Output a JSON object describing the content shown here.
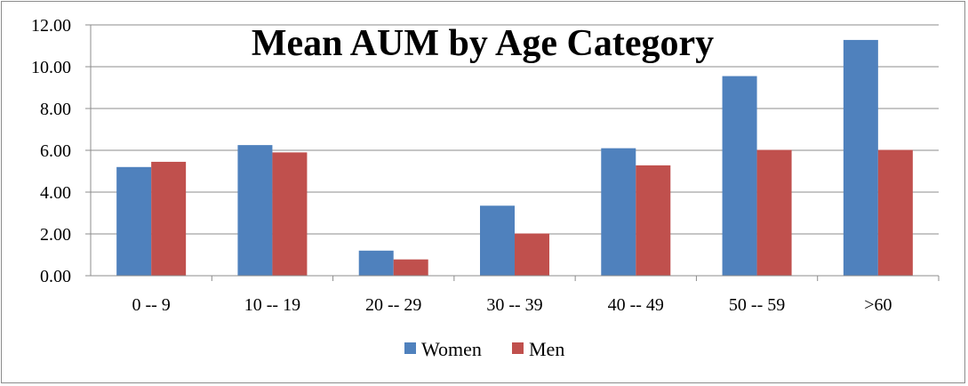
{
  "chart_data": {
    "type": "bar",
    "title": "Mean AUM by Age Category",
    "categories": [
      "0 -- 9",
      "10 -- 19",
      "20 -- 29",
      "30 -- 39",
      "40 -- 49",
      "50 -- 59",
      ">60"
    ],
    "series": [
      {
        "name": "Women",
        "color": "#4f81bd",
        "values": [
          5.2,
          6.25,
          1.2,
          3.35,
          6.1,
          9.55,
          11.28
        ]
      },
      {
        "name": "Men",
        "color": "#c0504d",
        "values": [
          5.45,
          5.9,
          0.78,
          2.02,
          5.28,
          6.02,
          6.02
        ]
      }
    ],
    "yticks": [
      "0.00",
      "2.00",
      "4.00",
      "6.00",
      "8.00",
      "10.00",
      "12.00"
    ],
    "ylim": [
      0,
      12
    ],
    "xlabel": "",
    "ylabel": "",
    "grid": true,
    "legend_position": "bottom"
  }
}
